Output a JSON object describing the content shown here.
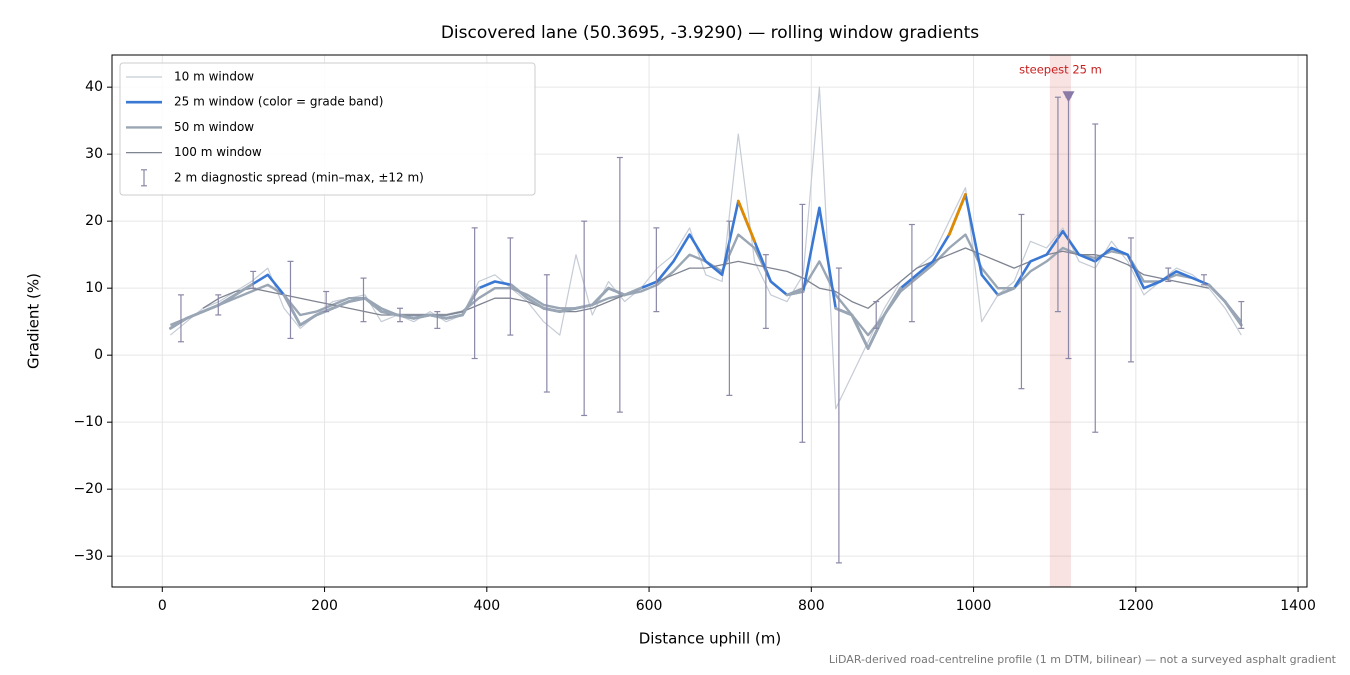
{
  "chart_data": {
    "type": "line",
    "title": "Discovered lane (50.3695, -3.9290) — rolling window gradients",
    "xlabel": "Distance uphill (m)",
    "ylabel": "Gradient (%)",
    "footnote": "LiDAR-derived road-centreline profile (1 m DTM, bilinear) — not a surveyed asphalt gradient",
    "xlim": [
      -62,
      1411
    ],
    "ylim": [
      -34.6,
      44.8
    ],
    "xticks": [
      0,
      200,
      400,
      600,
      800,
      1000,
      1200,
      1400
    ],
    "yticks": [
      {
        "value": -30,
        "label": "−30"
      },
      {
        "value": -20,
        "label": "−20"
      },
      {
        "value": -10,
        "label": "−10"
      },
      0,
      10,
      20,
      30,
      40
    ],
    "grid": true,
    "legend": "upper left",
    "x": [
      10,
      30,
      50,
      70,
      90,
      110,
      130,
      150,
      170,
      190,
      210,
      230,
      250,
      270,
      290,
      310,
      330,
      350,
      370,
      390,
      410,
      430,
      450,
      470,
      490,
      510,
      530,
      550,
      570,
      590,
      610,
      630,
      650,
      670,
      690,
      710,
      730,
      750,
      770,
      790,
      810,
      830,
      850,
      870,
      890,
      910,
      930,
      950,
      970,
      990,
      1010,
      1030,
      1050,
      1070,
      1090,
      1110,
      1130,
      1150,
      1170,
      1190,
      1210,
      1230,
      1250,
      1270,
      1290,
      1310,
      1330
    ],
    "series": [
      {
        "name": "10 m window",
        "color": "#c5ccd6",
        "values": [
          3,
          5,
          7,
          8,
          9.5,
          11,
          13,
          7,
          4,
          6,
          8,
          8.5,
          9,
          5,
          6,
          5,
          6.5,
          5,
          6,
          11,
          12,
          10,
          8,
          5,
          3,
          15,
          6,
          11,
          8,
          10,
          13,
          15,
          19,
          12,
          11,
          33,
          14,
          9,
          8,
          12,
          40,
          -8,
          -3,
          2,
          7,
          11,
          13,
          15,
          20,
          25,
          5,
          9,
          11,
          17,
          16,
          19,
          14,
          13,
          17,
          14,
          9,
          11,
          13,
          12,
          10,
          7,
          3
        ]
      },
      {
        "name": "25 m window (color = grade band)",
        "color": "#3a78d4",
        "banded": true,
        "values": [
          4,
          5.5,
          6.5,
          7.5,
          9,
          10.5,
          12,
          9,
          4.5,
          6,
          7,
          8,
          8.5,
          6.5,
          6,
          5.5,
          6,
          5.5,
          6,
          10,
          11,
          10.5,
          8.5,
          7,
          6.5,
          7,
          7.5,
          10,
          9,
          10,
          11,
          14,
          18,
          14,
          12,
          23,
          17,
          11,
          9,
          9.5,
          22,
          7,
          6,
          1,
          6,
          10,
          12,
          14,
          18,
          24,
          12,
          9,
          10,
          14,
          15,
          18.5,
          15,
          14,
          16,
          15,
          10,
          11,
          12.5,
          11.5,
          10.5,
          8,
          4.5
        ]
      },
      {
        "name": "50 m window",
        "color": "#9aa6b4",
        "values": [
          4.5,
          5.5,
          6.5,
          7.5,
          8.5,
          9.5,
          10.5,
          9,
          6,
          6.5,
          7.5,
          8.5,
          8.5,
          7,
          6,
          6,
          6,
          6,
          6.5,
          8.5,
          10,
          10,
          9,
          7.5,
          7,
          7,
          7.5,
          8.5,
          9,
          9.5,
          10.5,
          12.5,
          15,
          14,
          12.5,
          18,
          16,
          11,
          9,
          10,
          14,
          9,
          6,
          3,
          6,
          9.5,
          11.5,
          13.5,
          16,
          18,
          13,
          10,
          10,
          12.5,
          14,
          16,
          15,
          14.5,
          15.5,
          15,
          11,
          11,
          12,
          11.5,
          10.5,
          8,
          5
        ]
      },
      {
        "name": "100 m window",
        "color": "#7f8491",
        "values": [
          null,
          null,
          7,
          8.5,
          9.5,
          10,
          9.5,
          9,
          8.5,
          8,
          7.5,
          7,
          6.5,
          6,
          6,
          6,
          6,
          6,
          6.5,
          7.5,
          8.5,
          8.5,
          8,
          7,
          6.5,
          6.5,
          7,
          8,
          9,
          10,
          11,
          12,
          13,
          13,
          13.5,
          14,
          13.5,
          13,
          12.5,
          11.5,
          10,
          9.5,
          8,
          7,
          9,
          11,
          13,
          14,
          15,
          16,
          15,
          14,
          13,
          14,
          15,
          15.5,
          15,
          15,
          14.5,
          13.5,
          12,
          11.5,
          11,
          10.5,
          10,
          null,
          null
        ]
      }
    ],
    "grade_bands": [
      {
        "max": 10,
        "color": "#9aa6b4"
      },
      {
        "min": 10,
        "max": 20,
        "color": "#3a78d4"
      },
      {
        "min": 20,
        "max": 25,
        "color": "#e08a00"
      },
      {
        "min": 25,
        "color": "#c81e1e"
      }
    ],
    "spread": {
      "name": "2 m diagnostic spread (min–max, ±12 m)",
      "color": "#8a88a8",
      "x": [
        23,
        69,
        112,
        158,
        202,
        248,
        293,
        339,
        385,
        429,
        474,
        520,
        564,
        609,
        699,
        744,
        789,
        834,
        880,
        924,
        1059,
        1104,
        1117,
        1150,
        1194,
        1240,
        1284,
        1330
      ],
      "min": [
        2,
        6,
        10,
        2.5,
        6.5,
        5,
        5,
        4,
        -0.5,
        3,
        -5.5,
        -9,
        -8.5,
        6.5,
        -6,
        4,
        -13,
        -31,
        4,
        5,
        -5,
        6.5,
        -0.5,
        -11.5,
        -1,
        11,
        10.5,
        4
      ],
      "max": [
        9,
        9,
        12.5,
        14,
        9.5,
        11.5,
        7,
        6.5,
        19,
        17.5,
        12,
        20,
        29.5,
        19,
        20,
        15,
        22.5,
        13,
        8,
        19.5,
        21,
        38.5,
        38.5,
        34.5,
        17.5,
        13,
        12,
        8
      ]
    },
    "steepest": {
      "label": "steepest 25 m",
      "color": "#c81e1e",
      "xrange": [
        1094,
        1120
      ],
      "marker": [
        1117,
        38.5
      ]
    }
  }
}
